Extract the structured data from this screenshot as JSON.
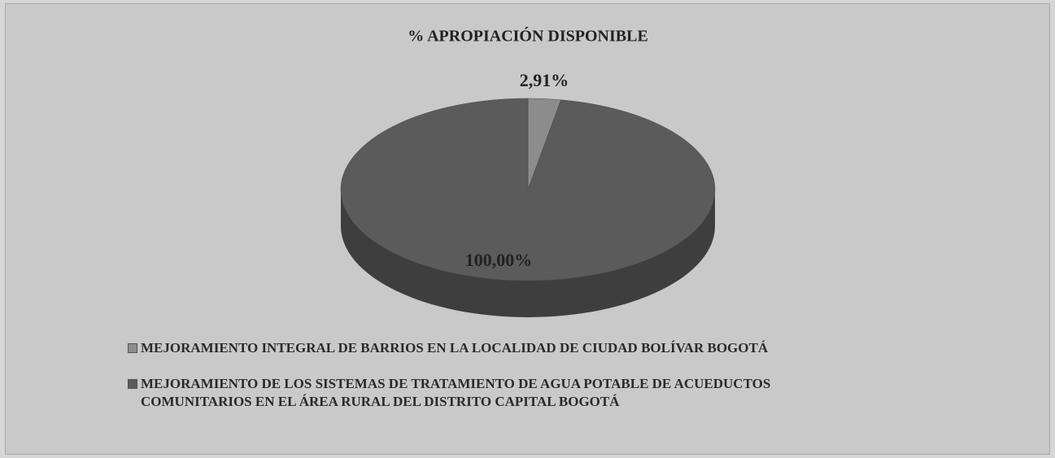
{
  "chart_data": {
    "type": "pie",
    "title": "% APROPIACIÓN DISPONIBLE",
    "categories": [
      "MEJORAMIENTO INTEGRAL DE BARRIOS EN LA LOCALIDAD DE CIUDAD BOLÍVAR BOGOTÁ",
      "MEJORAMIENTO DE LOS SISTEMAS DE TRATAMIENTO DE AGUA POTABLE DE ACUEDUCTOS COMUNITARIOS EN EL ÁREA RURAL DEL DISTRITO CAPITAL BOGOTÁ"
    ],
    "values": [
      2.91,
      100.0
    ],
    "value_labels": [
      "2,91%",
      "100,00%"
    ],
    "colors": [
      "#8c8c8c",
      "#5b5b5b"
    ],
    "side_colors": [
      "#6e6e6e",
      "#3e3e3e"
    ]
  }
}
